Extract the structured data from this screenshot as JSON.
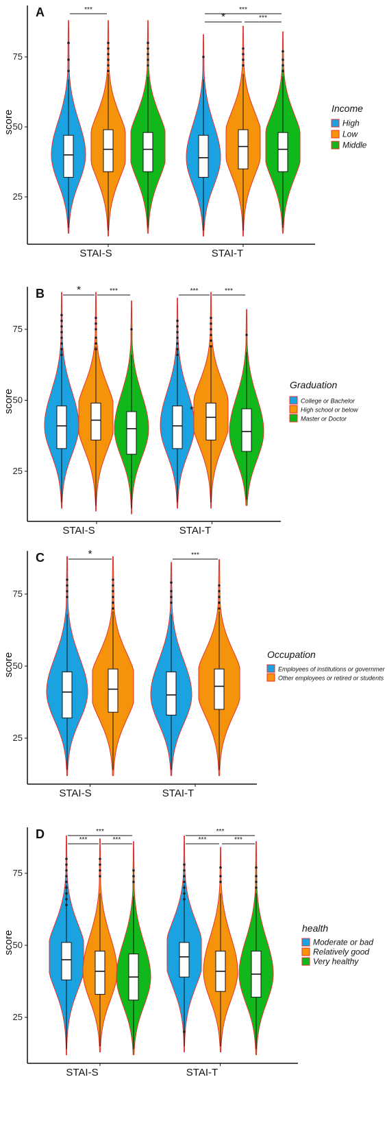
{
  "chart_data": [
    {
      "panel": "A",
      "type": "violin",
      "ylabel": "score",
      "yticks": [
        25,
        50,
        75
      ],
      "ylim": [
        10,
        88
      ],
      "categories": [
        "STAI-S",
        "STAI-T"
      ],
      "legend_title": "Income",
      "legend_position": "right",
      "groups": [
        {
          "name": "High",
          "color": "#1aa3e0"
        },
        {
          "name": "Low",
          "color": "#f5930b"
        },
        {
          "name": "Middle",
          "color": "#11b81b"
        }
      ],
      "series": [
        {
          "category": "STAI-S",
          "group": "High",
          "min": 12,
          "max": 88,
          "q1": 32,
          "median": 40,
          "q3": 47,
          "shape": "skew",
          "outliers": [
            70,
            74,
            80
          ]
        },
        {
          "category": "STAI-S",
          "group": "Low",
          "min": 11,
          "max": 88,
          "q1": 34,
          "median": 42,
          "q3": 49,
          "shape": "plateau",
          "outliers": [
            70,
            72,
            74,
            76,
            78,
            80
          ]
        },
        {
          "category": "STAI-S",
          "group": "Middle",
          "min": 12,
          "max": 88,
          "q1": 34,
          "median": 42,
          "q3": 48,
          "shape": "plateau",
          "outliers": [
            72,
            74,
            76,
            78,
            80
          ]
        },
        {
          "category": "STAI-T",
          "group": "High",
          "min": 11,
          "max": 83,
          "q1": 32,
          "median": 39,
          "q3": 47,
          "shape": "skew",
          "outliers": [
            75
          ]
        },
        {
          "category": "STAI-T",
          "group": "Low",
          "min": 11,
          "max": 86,
          "q1": 35,
          "median": 43,
          "q3": 49,
          "shape": "plateau",
          "outliers": [
            72,
            74,
            76,
            78
          ]
        },
        {
          "category": "STAI-T",
          "group": "Middle",
          "min": 12,
          "max": 84,
          "q1": 34,
          "median": 42,
          "q3": 48,
          "shape": "plateau",
          "outliers": [
            70,
            72,
            74,
            77
          ]
        }
      ],
      "significance": [
        {
          "category": "STAI-S",
          "from": 0,
          "to": 1,
          "label": "***",
          "level": 0
        },
        {
          "category": "STAI-T",
          "from": 0,
          "to": 2,
          "label": "***",
          "level": 1
        },
        {
          "category": "STAI-T",
          "from": 0,
          "to": 1,
          "label": "*",
          "level": 0
        },
        {
          "category": "STAI-T",
          "from": 1,
          "to": 2,
          "label": "***",
          "level": 0
        }
      ]
    },
    {
      "panel": "B",
      "type": "violin",
      "ylabel": "score",
      "yticks": [
        25,
        50,
        75
      ],
      "ylim": [
        10,
        88
      ],
      "categories": [
        "STAI-S",
        "STAI-T"
      ],
      "legend_title": "Graduation",
      "legend_position": "right",
      "groups": [
        {
          "name": "College or Bachelor",
          "color": "#1aa3e0"
        },
        {
          "name": "High school or below",
          "color": "#f5930b"
        },
        {
          "name": "Master or Doctor",
          "color": "#11b81b"
        }
      ],
      "series": [
        {
          "category": "STAI-S",
          "group": "College or Bachelor",
          "min": 12,
          "max": 88,
          "q1": 33,
          "median": 41,
          "q3": 48,
          "shape": "skew",
          "outliers": [
            66,
            68,
            70,
            72,
            74,
            76,
            78,
            80
          ]
        },
        {
          "category": "STAI-S",
          "group": "High school or below",
          "min": 11,
          "max": 88,
          "q1": 36,
          "median": 43,
          "q3": 49,
          "shape": "plateau",
          "outliers": [
            68,
            70,
            72,
            75,
            77,
            79
          ]
        },
        {
          "category": "STAI-S",
          "group": "Master or Doctor",
          "min": 10,
          "max": 85,
          "q1": 31,
          "median": 40,
          "q3": 46,
          "shape": "skew",
          "outliers": [
            75
          ]
        },
        {
          "category": "STAI-T",
          "group": "College or Bachelor",
          "min": 12,
          "max": 86,
          "q1": 33,
          "median": 41,
          "q3": 48,
          "shape": "skew",
          "outliers": [
            66,
            68,
            70,
            72,
            74,
            76,
            78
          ]
        },
        {
          "category": "STAI-T",
          "group": "High school or below",
          "min": 12,
          "max": 88,
          "q1": 36,
          "median": 44,
          "q3": 49,
          "shape": "plateau",
          "outliers": [
            69,
            71,
            73,
            75,
            77,
            79
          ]
        },
        {
          "category": "STAI-T",
          "group": "Master or Doctor",
          "min": 13,
          "max": 82,
          "q1": 32,
          "median": 39,
          "q3": 47,
          "shape": "skew",
          "outliers": [
            73
          ]
        }
      ],
      "significance": [
        {
          "category": "STAI-S",
          "from": 0,
          "to": 1,
          "label": "*",
          "level": 0
        },
        {
          "category": "STAI-S",
          "from": 1,
          "to": 2,
          "label": "***",
          "level": 0
        },
        {
          "category": "STAI-T",
          "from": 0,
          "to": 1,
          "label": "***",
          "level": 0
        },
        {
          "category": "STAI-T",
          "from": 1,
          "to": 2,
          "label": "***",
          "level": 0
        }
      ],
      "annotations": [
        {
          "text": "*",
          "category": "STAI-T",
          "group": 0,
          "y": 47
        }
      ]
    },
    {
      "panel": "C",
      "type": "violin",
      "ylabel": "score",
      "yticks": [
        25,
        50,
        75
      ],
      "ylim": [
        10,
        88
      ],
      "categories": [
        "STAI-S",
        "STAI-T"
      ],
      "legend_title": "Occupation",
      "legend_position": "right",
      "groups": [
        {
          "name": "Employees of institutions or governmer",
          "color": "#1aa3e0"
        },
        {
          "name": "Other employees or retired or students",
          "color": "#f5930b"
        }
      ],
      "series": [
        {
          "category": "STAI-S",
          "group": "Employees of institutions or governmer",
          "min": 12,
          "max": 88,
          "q1": 32,
          "median": 41,
          "q3": 48,
          "shape": "skew",
          "outliers": [
            74,
            76,
            78,
            80
          ]
        },
        {
          "category": "STAI-S",
          "group": "Other employees or retired or students",
          "min": 12,
          "max": 88,
          "q1": 34,
          "median": 42,
          "q3": 49,
          "shape": "plateau",
          "outliers": [
            70,
            72,
            74,
            76,
            78,
            80
          ]
        },
        {
          "category": "STAI-T",
          "group": "Employees of institutions or governmer",
          "min": 12,
          "max": 86,
          "q1": 33,
          "median": 40,
          "q3": 48,
          "shape": "skew",
          "outliers": [
            72,
            74,
            76,
            79
          ]
        },
        {
          "category": "STAI-T",
          "group": "Other employees or retired or students",
          "min": 12,
          "max": 87,
          "q1": 35,
          "median": 43,
          "q3": 49,
          "shape": "plateau",
          "outliers": [
            70,
            72,
            74,
            76,
            78
          ]
        }
      ],
      "significance": [
        {
          "category": "STAI-S",
          "from": 0,
          "to": 1,
          "label": "*",
          "level": 0,
          "big": true
        },
        {
          "category": "STAI-T",
          "from": 0,
          "to": 1,
          "label": "***",
          "level": 0
        }
      ]
    },
    {
      "panel": "D",
      "type": "violin",
      "ylabel": "score",
      "yticks": [
        25,
        50,
        75
      ],
      "ylim": [
        10,
        88
      ],
      "categories": [
        "STAI-S",
        "STAI-T"
      ],
      "legend_title": "health",
      "legend_position": "right",
      "groups": [
        {
          "name": "Moderate or bad",
          "color": "#1aa3e0"
        },
        {
          "name": "Relatively good",
          "color": "#f5930b"
        },
        {
          "name": "Very healthy",
          "color": "#11b81b"
        }
      ],
      "series": [
        {
          "category": "STAI-S",
          "group": "Moderate or bad",
          "min": 12,
          "max": 88,
          "q1": 38,
          "median": 45,
          "q3": 51,
          "shape": "plateau",
          "outliers": [
            64,
            66,
            68,
            70,
            72,
            74,
            76,
            78,
            80
          ]
        },
        {
          "category": "STAI-S",
          "group": "Relatively good",
          "min": 13,
          "max": 87,
          "q1": 33,
          "median": 41,
          "q3": 48,
          "shape": "skew",
          "outliers": [
            74,
            76,
            78,
            80
          ]
        },
        {
          "category": "STAI-S",
          "group": "Very healthy",
          "min": 12,
          "max": 86,
          "q1": 31,
          "median": 39,
          "q3": 47,
          "shape": "skew",
          "outliers": [
            72,
            74,
            76
          ]
        },
        {
          "category": "STAI-T",
          "group": "Moderate or bad",
          "min": 13,
          "max": 88,
          "q1": 39,
          "median": 46,
          "q3": 51,
          "shape": "plateau",
          "outliers": [
            20,
            66,
            68,
            70,
            72,
            74,
            76,
            78
          ]
        },
        {
          "category": "STAI-T",
          "group": "Relatively good",
          "min": 13,
          "max": 84,
          "q1": 34,
          "median": 41,
          "q3": 48,
          "shape": "skew",
          "outliers": [
            72,
            74,
            77
          ]
        },
        {
          "category": "STAI-T",
          "group": "Very healthy",
          "min": 12,
          "max": 86,
          "q1": 32,
          "median": 40,
          "q3": 48,
          "shape": "skew",
          "outliers": [
            70,
            72,
            74,
            77
          ]
        }
      ],
      "significance": [
        {
          "category": "STAI-S",
          "from": 0,
          "to": 2,
          "label": "***",
          "level": 1
        },
        {
          "category": "STAI-S",
          "from": 0,
          "to": 1,
          "label": "***",
          "level": 0
        },
        {
          "category": "STAI-S",
          "from": 1,
          "to": 2,
          "label": "***",
          "level": 0
        },
        {
          "category": "STAI-T",
          "from": 0,
          "to": 2,
          "label": "***",
          "level": 1
        },
        {
          "category": "STAI-T",
          "from": 0,
          "to": 1,
          "label": "***",
          "level": 0
        },
        {
          "category": "STAI-T",
          "from": 1,
          "to": 2,
          "label": "***",
          "level": 0
        }
      ]
    }
  ]
}
